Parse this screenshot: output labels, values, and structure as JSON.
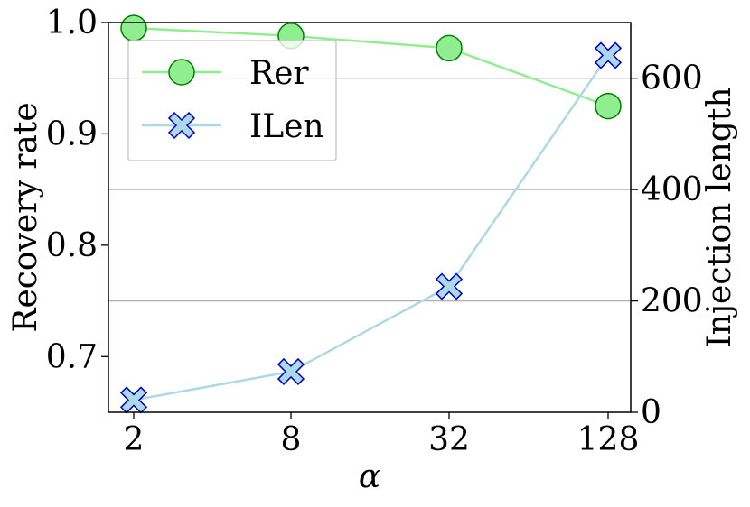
{
  "chart_data": {
    "type": "line",
    "title": "",
    "categories": [
      "2",
      "8",
      "32",
      "128"
    ],
    "xlabel": "α",
    "ylabel_left": "Recovery rate",
    "ylabel_right": "Injection length",
    "ylim_left": [
      0.65,
      1.0
    ],
    "ylim_right": [
      0,
      700
    ],
    "yticks_left": [
      "0.7",
      "0.8",
      "0.9",
      "1.0"
    ],
    "yticks_right": [
      "0",
      "200",
      "400",
      "600"
    ],
    "grid": "horizontal (right axis)",
    "legend_position": "top-left",
    "series": [
      {
        "name": "Rer",
        "axis": "left",
        "marker": "circle",
        "color": "#90ee90",
        "edge_color": "#008000",
        "values": [
          0.995,
          0.988,
          0.977,
          0.925
        ]
      },
      {
        "name": "ILen",
        "axis": "right",
        "marker": "x",
        "color": "#add8e6",
        "edge_color": "#0000cd",
        "values": [
          22,
          73,
          226,
          641
        ]
      }
    ]
  }
}
